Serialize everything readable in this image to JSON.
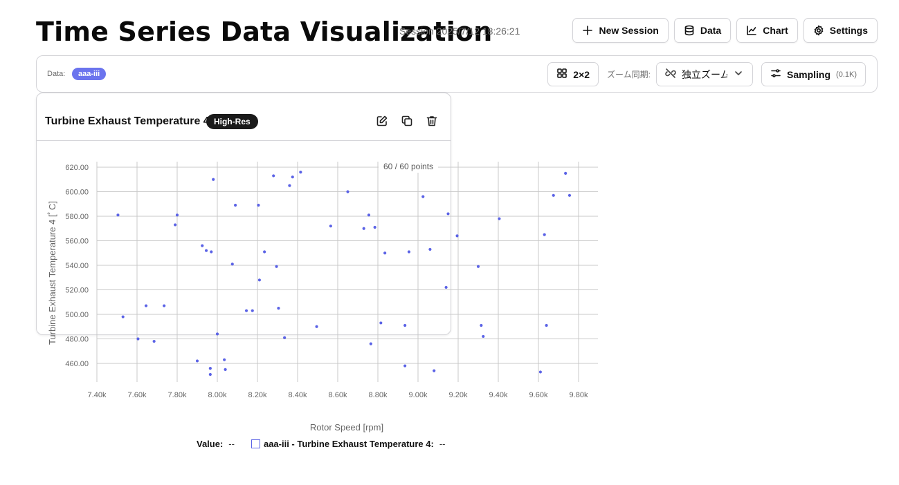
{
  "header": {
    "title": "Time Series Data Visualization",
    "session": "Session 2025/7/12 18:26:21",
    "buttons": [
      {
        "label": "New Session",
        "icon": "plus-icon"
      },
      {
        "label": "Data",
        "icon": "database-icon"
      },
      {
        "label": "Chart",
        "icon": "line-chart-icon"
      },
      {
        "label": "Settings",
        "icon": "gear-icon"
      }
    ]
  },
  "toolbar": {
    "data_label": "Data:",
    "data_badge": "aaa-iii",
    "layout_label": "2×2",
    "zoom_label": "ズーム同期:",
    "zoom_value": "独立ズーム",
    "sampling_label": "Sampling",
    "sampling_count": "(0.1K)"
  },
  "card": {
    "title": "Turbine Exhaust Temperature 4",
    "badge": "High-Res",
    "points_label": "60 / 60 points"
  },
  "legend": {
    "value_label": "Value:",
    "value": "--",
    "series_label": "aaa-iii - Turbine Exhaust Temperature 4:",
    "series_value": "--"
  },
  "colors": {
    "accent": "#6b74ee",
    "point": "#5b63e6"
  },
  "chart_data": {
    "type": "scatter",
    "xlabel": "Rotor Speed [rpm]",
    "ylabel": "Turbine Exhaust Temperature 4 [ﾟC]",
    "xlim": [
      7400,
      9850
    ],
    "ylim": [
      445,
      625
    ],
    "x_ticks": [
      7400,
      7600,
      7800,
      8000,
      8200,
      8400,
      8600,
      8800,
      9000,
      9200,
      9400,
      9600,
      9800
    ],
    "x_tick_labels": [
      "7.40k",
      "7.60k",
      "7.80k",
      "8.00k",
      "8.20k",
      "8.40k",
      "8.60k",
      "8.80k",
      "9.00k",
      "9.20k",
      "9.40k",
      "9.60k",
      "9.80k"
    ],
    "y_ticks": [
      460,
      480,
      500,
      520,
      540,
      560,
      580,
      600,
      620
    ],
    "y_tick_labels": [
      "460.00",
      "480.00",
      "500.00",
      "520.00",
      "540.00",
      "560.00",
      "580.00",
      "600.00",
      "620.00"
    ],
    "grid": true,
    "series": [
      {
        "points": [
          [
            7505,
            581
          ],
          [
            7530,
            498
          ],
          [
            7605,
            480
          ],
          [
            7645,
            507
          ],
          [
            7685,
            478
          ],
          [
            7735,
            507
          ],
          [
            7790,
            573
          ],
          [
            7800,
            581
          ],
          [
            7900,
            462
          ],
          [
            7925,
            556
          ],
          [
            7945,
            552
          ],
          [
            7965,
            456
          ],
          [
            7965,
            451
          ],
          [
            7970,
            551
          ],
          [
            7980,
            610
          ],
          [
            8000,
            484
          ],
          [
            8035,
            463
          ],
          [
            8040,
            455
          ],
          [
            8075,
            541
          ],
          [
            8090,
            589
          ],
          [
            8145,
            503
          ],
          [
            8175,
            503
          ],
          [
            8205,
            589
          ],
          [
            8210,
            528
          ],
          [
            8235,
            551
          ],
          [
            8280,
            613
          ],
          [
            8295,
            539
          ],
          [
            8305,
            505
          ],
          [
            8335,
            481
          ],
          [
            8360,
            605
          ],
          [
            8375,
            612
          ],
          [
            8415,
            616
          ],
          [
            8495,
            490
          ],
          [
            8565,
            572
          ],
          [
            8650,
            600
          ],
          [
            8730,
            570
          ],
          [
            8755,
            581
          ],
          [
            8765,
            476
          ],
          [
            8785,
            571
          ],
          [
            8815,
            493
          ],
          [
            8835,
            550
          ],
          [
            8935,
            458
          ],
          [
            8935,
            491
          ],
          [
            8955,
            551
          ],
          [
            9025,
            596
          ],
          [
            9060,
            553
          ],
          [
            9080,
            454
          ],
          [
            9140,
            522
          ],
          [
            9150,
            582
          ],
          [
            9195,
            564
          ],
          [
            9300,
            539
          ],
          [
            9315,
            491
          ],
          [
            9325,
            482
          ],
          [
            9405,
            578
          ],
          [
            9610,
            453
          ],
          [
            9630,
            565
          ],
          [
            9640,
            491
          ],
          [
            9675,
            597
          ],
          [
            9735,
            615
          ],
          [
            9755,
            597
          ]
        ]
      }
    ]
  }
}
